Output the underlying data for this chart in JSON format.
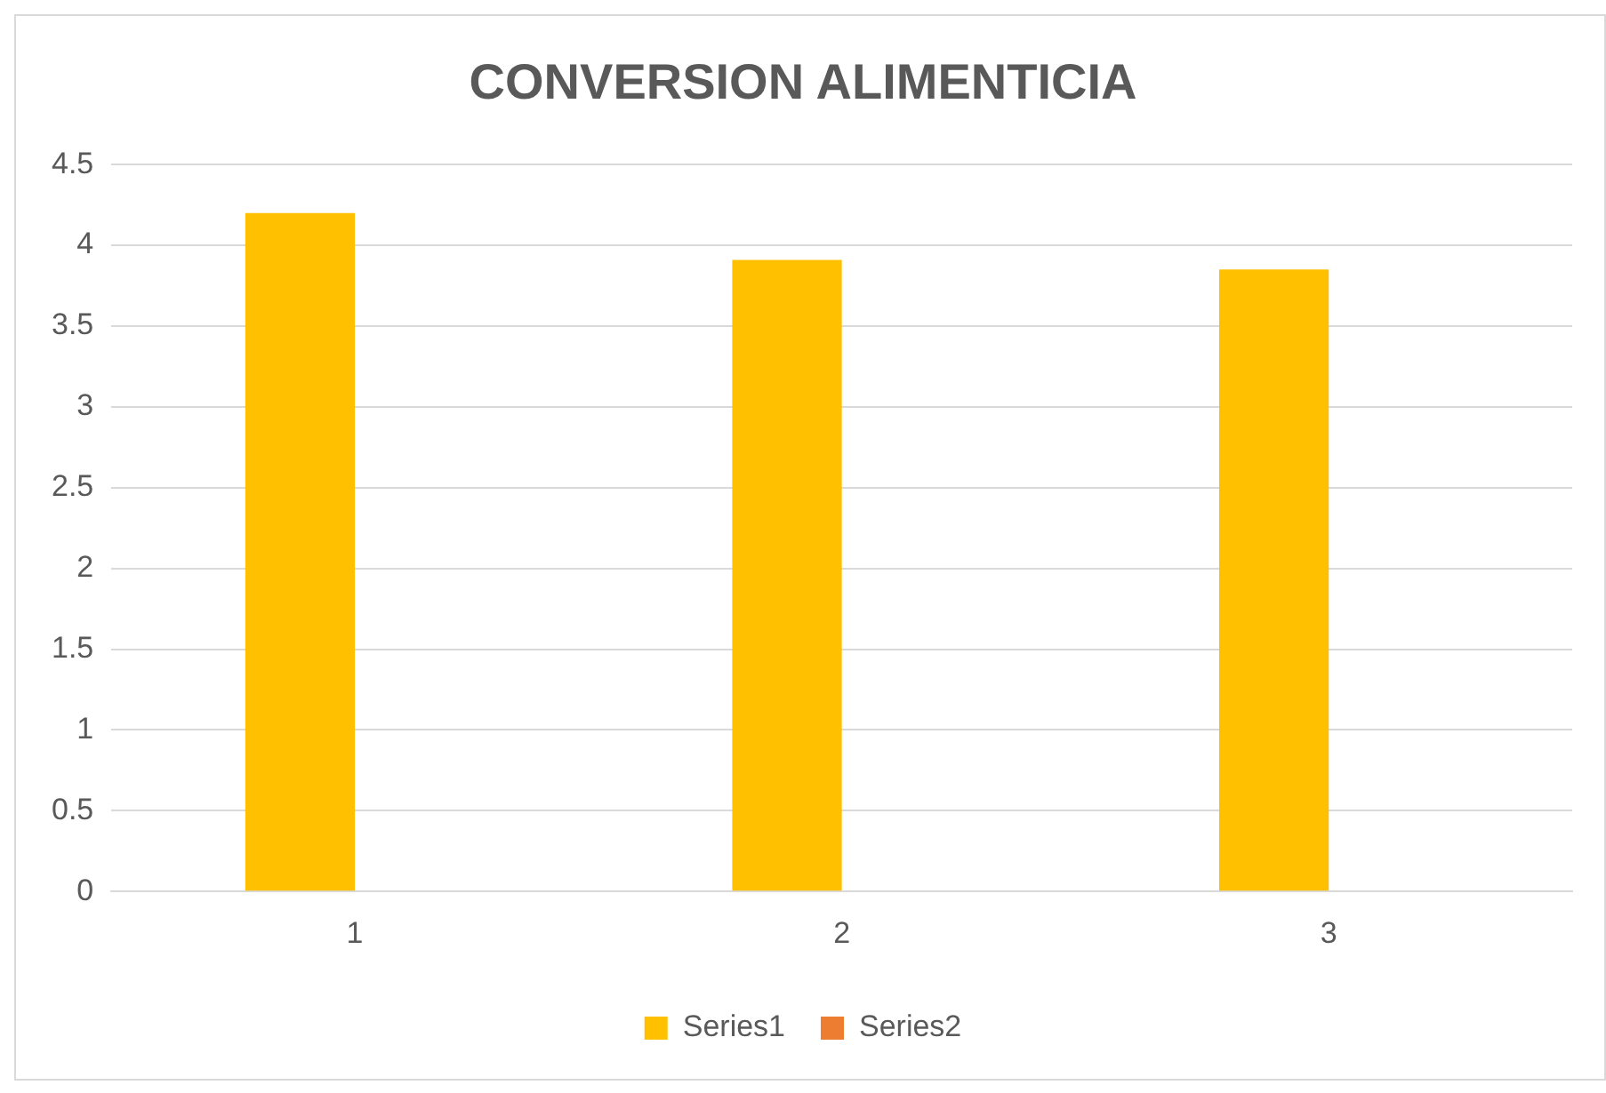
{
  "chart_data": {
    "type": "bar",
    "title": "CONVERSION ALIMENTICIA",
    "categories": [
      "1",
      "2",
      "3"
    ],
    "series": [
      {
        "name": "Series1",
        "color": "#ffc000",
        "values": [
          4.2,
          3.91,
          3.85
        ]
      },
      {
        "name": "Series2",
        "color": "#ed7d31",
        "values": [
          null,
          null,
          null
        ]
      }
    ],
    "ylim": [
      0,
      4.5
    ],
    "yticks": [
      0,
      0.5,
      1,
      1.5,
      2,
      2.5,
      3,
      3.5,
      4,
      4.5
    ],
    "grid": "y",
    "legend": "bottom"
  }
}
